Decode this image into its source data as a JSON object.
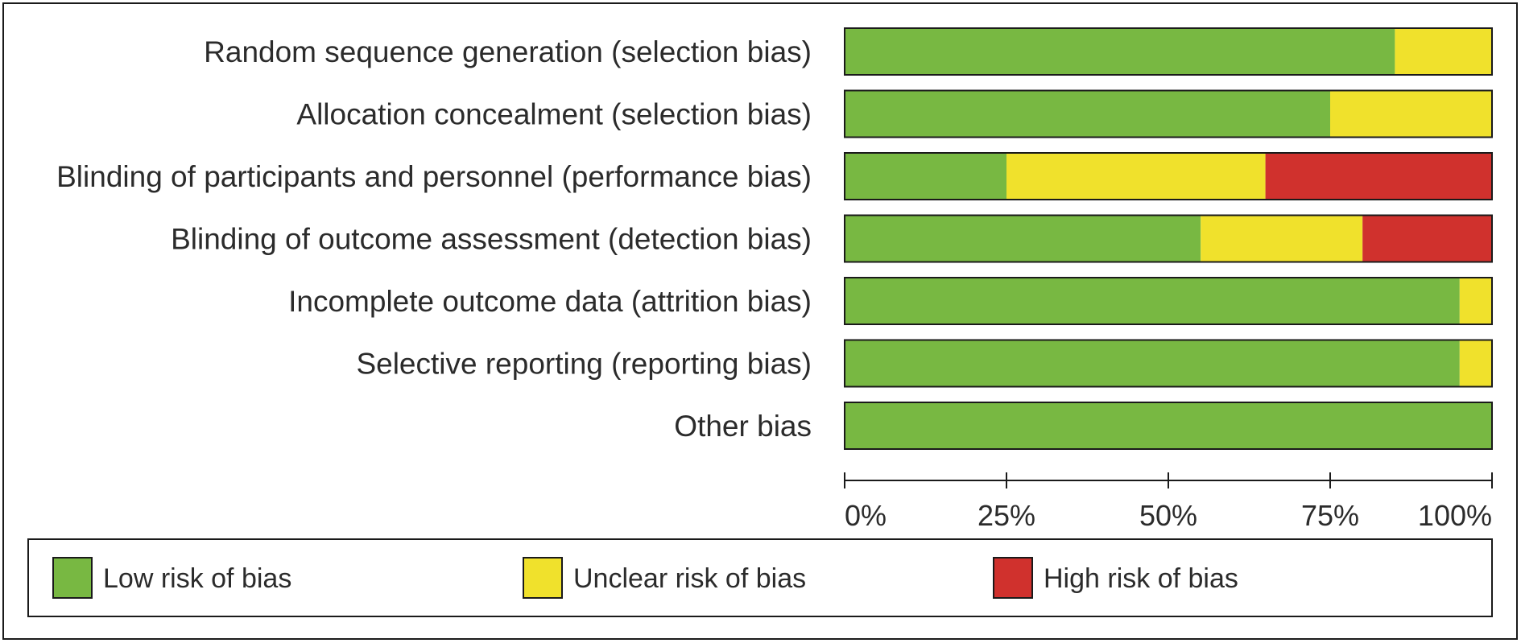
{
  "chart_data": {
    "type": "bar",
    "orientation": "horizontal",
    "stacked": true,
    "normalized": true,
    "categories": [
      "Random sequence generation (selection bias)",
      "Allocation concealment (selection bias)",
      "Blinding of participants and personnel (performance bias)",
      "Blinding of outcome assessment (detection bias)",
      "Incomplete outcome data (attrition bias)",
      "Selective reporting (reporting bias)",
      "Other bias"
    ],
    "series": [
      {
        "name": "Low risk of bias",
        "color": "#78b842",
        "values": [
          85,
          75,
          25,
          55,
          95,
          95,
          100
        ]
      },
      {
        "name": "Unclear risk of bias",
        "color": "#f0e12c",
        "values": [
          15,
          25,
          40,
          25,
          5,
          5,
          0
        ]
      },
      {
        "name": "High risk of bias",
        "color": "#d0312d",
        "values": [
          0,
          0,
          35,
          20,
          0,
          0,
          0
        ]
      }
    ],
    "xlim": [
      0,
      100
    ],
    "xticks": [
      "0%",
      "25%",
      "50%",
      "75%",
      "100%"
    ],
    "legend_position": "bottom",
    "grid": false
  }
}
